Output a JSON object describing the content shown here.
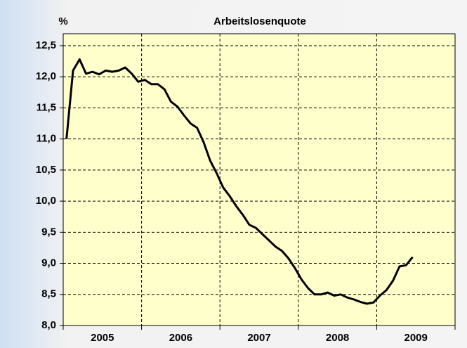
{
  "chart_data": {
    "type": "line",
    "title": "Arbeitslosenquote",
    "y_label": "%",
    "year_labels": [
      "2005",
      "2006",
      "2007",
      "2008",
      "2009"
    ],
    "series": [
      {
        "name": "Arbeitslosenquote",
        "color": "#000000",
        "values": [
          11.0,
          12.1,
          12.28,
          12.05,
          12.08,
          12.04,
          12.1,
          12.08,
          12.1,
          12.15,
          12.05,
          11.92,
          11.95,
          11.88,
          11.88,
          11.8,
          11.6,
          11.52,
          11.38,
          11.25,
          11.18,
          10.95,
          10.65,
          10.45,
          10.22,
          10.08,
          9.92,
          9.78,
          9.62,
          9.57,
          9.47,
          9.37,
          9.27,
          9.2,
          9.08,
          8.92,
          8.74,
          8.6,
          8.5,
          8.5,
          8.53,
          8.48,
          8.5,
          8.45,
          8.42,
          8.38,
          8.35,
          8.37,
          8.48,
          8.57,
          8.72,
          8.95,
          8.97,
          9.1
        ]
      }
    ],
    "ylim": [
      8.0,
      12.5
    ],
    "yticks": [
      {
        "value": 8.0,
        "label": "8,0"
      },
      {
        "value": 8.5,
        "label": "8,5"
      },
      {
        "value": 9.0,
        "label": "9,0"
      },
      {
        "value": 9.5,
        "label": "9,5"
      },
      {
        "value": 10.0,
        "label": "10,0"
      },
      {
        "value": 10.5,
        "label": "10,5"
      },
      {
        "value": 11.0,
        "label": "11,0"
      },
      {
        "value": 11.5,
        "label": "11,5"
      },
      {
        "value": 12.0,
        "label": "12,0"
      },
      {
        "value": 12.5,
        "label": "12,5"
      }
    ],
    "grid": true,
    "plot_background": "#ffffcc"
  }
}
